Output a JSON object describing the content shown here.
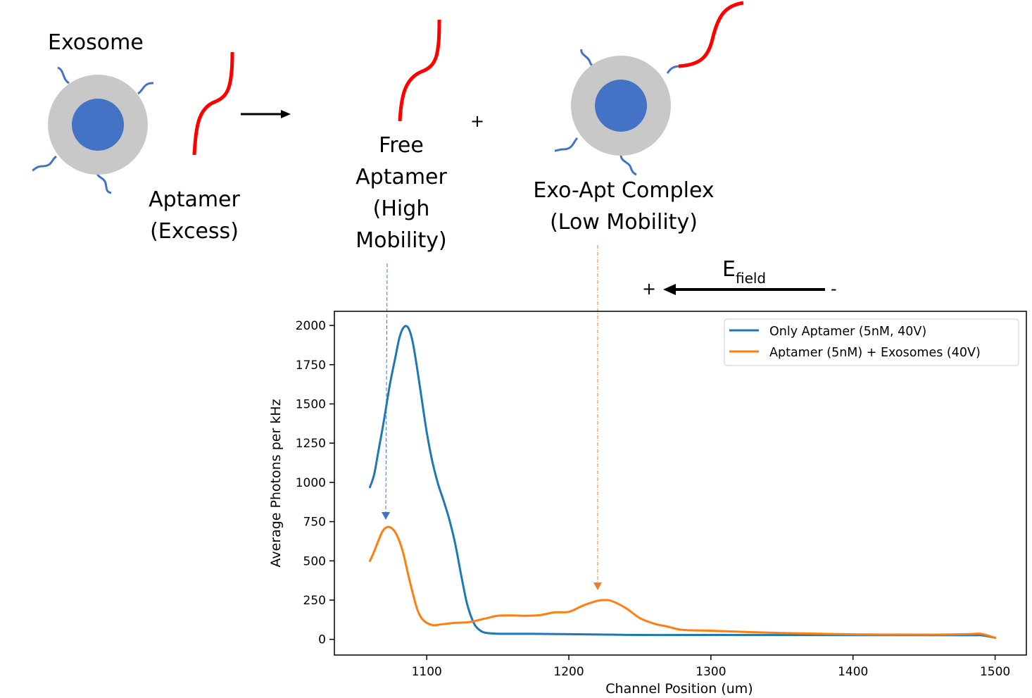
{
  "diagram": {
    "exosome_label": "Exosome",
    "aptamer_label_line1": "Aptamer",
    "aptamer_label_line2": "(Excess)",
    "free_label_line1": "Free",
    "free_label_line2": "Aptamer",
    "free_label_line3": "(High",
    "free_label_line4": "Mobility)",
    "plus_sign": "+",
    "complex_label_line1": "Exo-Apt Complex",
    "complex_label_line2": "(Low Mobility)",
    "efield_E": "E",
    "efield_sub": "field",
    "efield_plus": "+",
    "efield_minus": "-",
    "colors": {
      "aptamer": "#ff0000",
      "exosome_shell": "#c8c8c8",
      "exosome_core": "#4472c4",
      "receptor": "#4472c4"
    }
  },
  "chart_data": {
    "type": "line",
    "title": "",
    "xlabel": "Channel Position (um)",
    "ylabel": "Average Photons per kHz",
    "xlim": [
      1035,
      1522
    ],
    "ylim": [
      -100,
      2090
    ],
    "xticks": [
      1100,
      1200,
      1300,
      1400,
      1500
    ],
    "yticks": [
      0,
      250,
      500,
      750,
      1000,
      1250,
      1500,
      1750,
      2000
    ],
    "grid": false,
    "legend_position": "top-right",
    "series": [
      {
        "name": "Only Aptamer (5nM, 40V)",
        "color": "#1f77b4",
        "x": [
          1060,
          1063,
          1066,
          1070,
          1074,
          1078,
          1081,
          1084,
          1087,
          1090,
          1093,
          1096,
          1100,
          1104,
          1108,
          1112,
          1116,
          1120,
          1124,
          1128,
          1131,
          1134,
          1137,
          1140,
          1145,
          1155,
          1175,
          1200,
          1250,
          1300,
          1400,
          1480,
          1490,
          1500
        ],
        "y": [
          970,
          1050,
          1200,
          1400,
          1620,
          1800,
          1930,
          1990,
          1985,
          1900,
          1740,
          1560,
          1320,
          1130,
          990,
          880,
          760,
          610,
          420,
          240,
          150,
          90,
          60,
          45,
          38,
          35,
          35,
          33,
          28,
          28,
          27,
          26,
          26,
          10
        ]
      },
      {
        "name": "Aptamer (5nM) + Exosomes (40V)",
        "color": "#ff7f0e",
        "x": [
          1060,
          1063,
          1066,
          1069,
          1072,
          1075,
          1078,
          1081,
          1084,
          1087,
          1090,
          1093,
          1096,
          1100,
          1105,
          1110,
          1120,
          1130,
          1140,
          1150,
          1160,
          1170,
          1180,
          1190,
          1200,
          1210,
          1220,
          1225,
          1230,
          1240,
          1250,
          1260,
          1270,
          1280,
          1300,
          1350,
          1400,
          1450,
          1480,
          1490,
          1500
        ],
        "y": [
          500,
          560,
          630,
          690,
          715,
          710,
          680,
          620,
          530,
          410,
          300,
          200,
          140,
          105,
          90,
          95,
          105,
          110,
          130,
          150,
          152,
          150,
          155,
          172,
          175,
          215,
          245,
          250,
          245,
          200,
          135,
          100,
          80,
          60,
          55,
          40,
          32,
          30,
          33,
          35,
          10
        ]
      }
    ]
  }
}
